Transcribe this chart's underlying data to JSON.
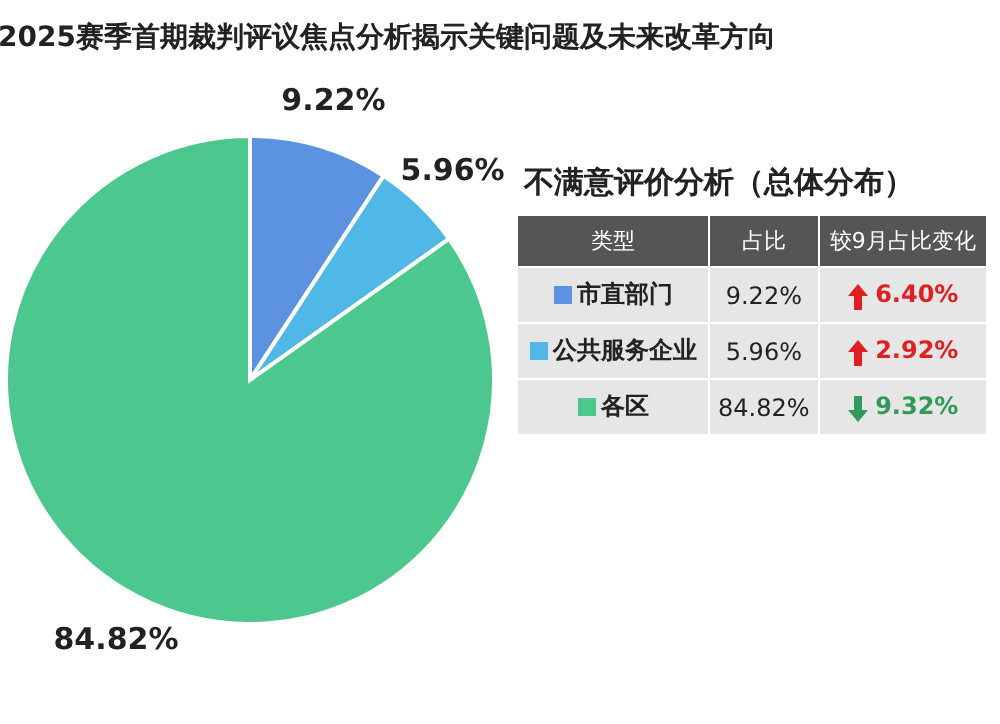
{
  "chart_data": {
    "type": "pie",
    "title": "2025赛季首期裁判评议焦点分析揭示关键问题及未来改革方向",
    "categories": [
      "市直部门",
      "公共服务企业",
      "各区"
    ],
    "values": [
      9.22,
      5.96,
      84.82
    ],
    "colors": [
      "#5b93e0",
      "#4fb8e6",
      "#4cc78e"
    ],
    "legend": "right",
    "value_labels": [
      "9.22%",
      "5.96%",
      "84.82%"
    ],
    "annotations": [
      "不满意评价分析（总体分布）",
      "类型",
      "占比",
      "较9月占比变化",
      "6.40%",
      "2.92%",
      "9.32%"
    ]
  }
}
